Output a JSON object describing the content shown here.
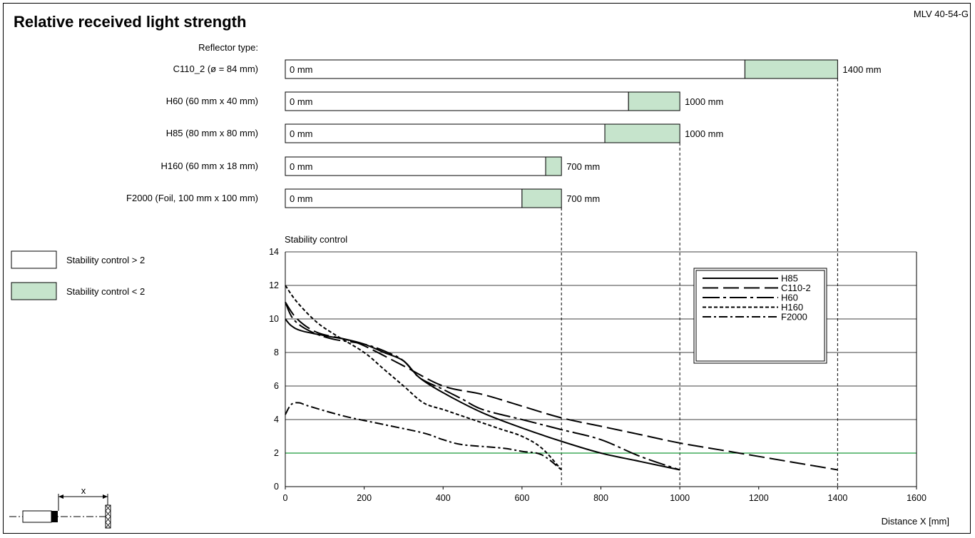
{
  "header": {
    "title": "Relative received light strength",
    "model": "MLV 40-54-G"
  },
  "reflector_header": "Reflector type:",
  "colors": {
    "stable": "#ffffff",
    "unstable": "#c6e4cc",
    "threshold_line": "#1a9a3a",
    "ink": "#000000"
  },
  "side_legend": [
    {
      "label": "Stability control > 2",
      "color": "#ffffff"
    },
    {
      "label": "Stability control < 2",
      "color": "#c6e4cc"
    }
  ],
  "diagram": {
    "distance_label": "x"
  },
  "chart_data": [
    {
      "type": "bar",
      "title": "Reflector type:",
      "unit": "mm",
      "bars": [
        {
          "name": "C110_2 (ø = 84 mm)",
          "start_label": "0 mm",
          "end_label": "1400 mm",
          "stable_to": 1165,
          "max": 1400
        },
        {
          "name": "H60 (60 mm x 40 mm)",
          "start_label": "0 mm",
          "end_label": "1000 mm",
          "stable_to": 870,
          "max": 1000
        },
        {
          "name": "H85 (80 mm x 80 mm)",
          "start_label": "0 mm",
          "end_label": "1000 mm",
          "stable_to": 810,
          "max": 1000
        },
        {
          "name": "H160 (60 mm x 18 mm)",
          "start_label": "0 mm",
          "end_label": "700 mm",
          "stable_to": 660,
          "max": 700
        },
        {
          "name": "F2000 (Foil, 100 mm x 100 mm)",
          "start_label": "0 mm",
          "end_label": "700 mm",
          "stable_to": 600,
          "max": 700
        }
      ]
    },
    {
      "type": "line",
      "ylabel": "Stability control",
      "xlabel": "Distance X [mm]",
      "xlim": [
        0,
        1600
      ],
      "ylim": [
        0,
        14
      ],
      "xticks": [
        0,
        200,
        400,
        600,
        800,
        1000,
        1200,
        1400,
        1600
      ],
      "yticks": [
        0,
        2,
        4,
        6,
        8,
        10,
        12,
        14
      ],
      "threshold": 2,
      "grid": "horizontal",
      "legend_position": "top-right",
      "series": [
        {
          "name": "H85",
          "dash": "solid",
          "points": [
            [
              0,
              10
            ],
            [
              15,
              9.6
            ],
            [
              40,
              9.3
            ],
            [
              100,
              9
            ],
            [
              150,
              8.8
            ],
            [
              200,
              8.5
            ],
            [
              250,
              8
            ],
            [
              300,
              7.5
            ],
            [
              340,
              6.5
            ],
            [
              400,
              5.6
            ],
            [
              500,
              4.4
            ],
            [
              600,
              3.5
            ],
            [
              700,
              2.7
            ],
            [
              800,
              2
            ],
            [
              900,
              1.5
            ],
            [
              1000,
              1
            ]
          ]
        },
        {
          "name": "C110-2",
          "dash": "long",
          "points": [
            [
              0,
              11
            ],
            [
              30,
              10
            ],
            [
              80,
              9.2
            ],
            [
              150,
              8.8
            ],
            [
              200,
              8.4
            ],
            [
              300,
              7.2
            ],
            [
              400,
              6
            ],
            [
              500,
              5.5
            ],
            [
              600,
              4.8
            ],
            [
              700,
              4.1
            ],
            [
              800,
              3.6
            ],
            [
              900,
              3.1
            ],
            [
              1000,
              2.6
            ],
            [
              1100,
              2.2
            ],
            [
              1200,
              1.8
            ],
            [
              1300,
              1.4
            ],
            [
              1400,
              1
            ]
          ]
        },
        {
          "name": "H60",
          "dash": "dash-dot-long",
          "points": [
            [
              0,
              11
            ],
            [
              20,
              10
            ],
            [
              60,
              9.3
            ],
            [
              120,
              8.8
            ],
            [
              200,
              8.5
            ],
            [
              260,
              8
            ],
            [
              300,
              7.5
            ],
            [
              340,
              6.5
            ],
            [
              400,
              5.8
            ],
            [
              450,
              5.2
            ],
            [
              500,
              4.6
            ],
            [
              600,
              4
            ],
            [
              700,
              3.4
            ],
            [
              800,
              2.8
            ],
            [
              900,
              1.8
            ],
            [
              1000,
              1
            ]
          ]
        },
        {
          "name": "H160",
          "dash": "short",
          "points": [
            [
              0,
              12
            ],
            [
              30,
              11
            ],
            [
              80,
              9.8
            ],
            [
              130,
              9
            ],
            [
              200,
              8
            ],
            [
              250,
              7
            ],
            [
              300,
              6
            ],
            [
              350,
              5
            ],
            [
              400,
              4.6
            ],
            [
              450,
              4.2
            ],
            [
              500,
              3.8
            ],
            [
              550,
              3.4
            ],
            [
              600,
              3
            ],
            [
              650,
              2.3
            ],
            [
              700,
              1
            ]
          ]
        },
        {
          "name": "F2000",
          "dash": "dash-dot",
          "points": [
            [
              0,
              4.3
            ],
            [
              15,
              4.9
            ],
            [
              35,
              5
            ],
            [
              60,
              4.8
            ],
            [
              150,
              4.2
            ],
            [
              250,
              3.7
            ],
            [
              350,
              3.2
            ],
            [
              400,
              2.8
            ],
            [
              450,
              2.5
            ],
            [
              550,
              2.3
            ],
            [
              600,
              2.1
            ],
            [
              650,
              1.9
            ],
            [
              700,
              1
            ]
          ]
        }
      ]
    }
  ]
}
